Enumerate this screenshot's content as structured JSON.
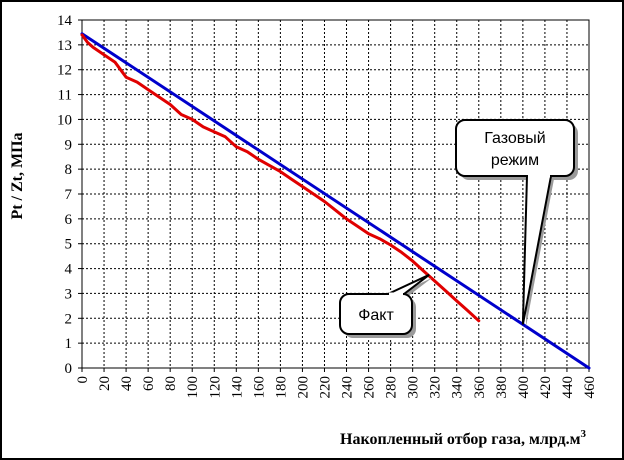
{
  "chart_data": {
    "type": "line",
    "title": "",
    "xlabel": "Накопленный отбор газа, млрд.м",
    "xlabel_sup": "3",
    "ylabel": "Pt / Zt, МПа",
    "xlim": [
      0,
      460
    ],
    "ylim": [
      0,
      14
    ],
    "x_ticks": [
      "0",
      "20",
      "40",
      "60",
      "80",
      "100",
      "120",
      "140",
      "160",
      "180",
      "200",
      "220",
      "240",
      "260",
      "280",
      "300",
      "320",
      "340",
      "360",
      "380",
      "400",
      "420",
      "440",
      "460"
    ],
    "y_ticks": [
      "0",
      "1",
      "2",
      "3",
      "4",
      "5",
      "6",
      "7",
      "8",
      "9",
      "10",
      "11",
      "12",
      "13",
      "14"
    ],
    "grid": true,
    "series": [
      {
        "color": "#0000cc",
        "x": [
          0,
          460
        ],
        "y": [
          13.45,
          0
        ]
      },
      {
        "color": "#e00000",
        "x": [
          0,
          5,
          10,
          20,
          30,
          40,
          50,
          60,
          70,
          80,
          90,
          100,
          110,
          120,
          130,
          140,
          150,
          160,
          170,
          180,
          190,
          200,
          210,
          220,
          230,
          240,
          250,
          260,
          270,
          280,
          290,
          300,
          310,
          320,
          330,
          340,
          350,
          360
        ],
        "y": [
          13.4,
          13.1,
          12.9,
          12.6,
          12.3,
          11.7,
          11.5,
          11.2,
          10.9,
          10.6,
          10.2,
          10.0,
          9.7,
          9.5,
          9.3,
          8.9,
          8.7,
          8.4,
          8.15,
          7.9,
          7.6,
          7.3,
          7.0,
          6.7,
          6.35,
          6.0,
          5.7,
          5.4,
          5.2,
          4.95,
          4.65,
          4.3,
          3.9,
          3.5,
          3.1,
          2.7,
          2.3,
          1.9
        ]
      }
    ],
    "annotations": [
      {
        "text": "Газовый режим",
        "lines": [
          "Газовый",
          "режим"
        ],
        "points_to": [
          400,
          1.75
        ]
      },
      {
        "text": "Факт",
        "lines": [
          "Факт"
        ],
        "points_to": [
          315,
          3.75
        ]
      }
    ]
  }
}
